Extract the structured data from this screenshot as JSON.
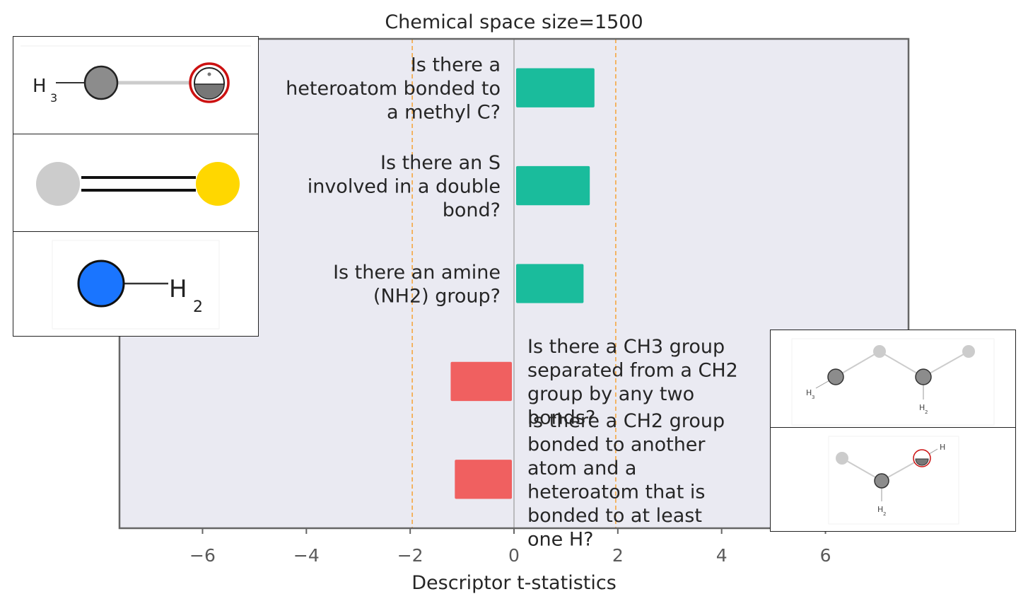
{
  "chart_data": {
    "type": "bar",
    "orientation": "horizontal",
    "title": "Chemical space size=1500",
    "xlabel": "Descriptor t-statistics",
    "ylabel": "",
    "xlim": [
      -7.6,
      7.6
    ],
    "xticks": [
      -6,
      -4,
      -2,
      0,
      2,
      4,
      6
    ],
    "xtick_labels": [
      "−6",
      "−4",
      "−2",
      "0",
      "2",
      "4",
      "6"
    ],
    "significance_lines": [
      -1.96,
      1.96
    ],
    "grid": false,
    "categories": [
      "Is there a heteroatom bonded to a methyl C?",
      "Is there an S involved in a double bond?",
      "Is there an amine (NH2) group?",
      "Is there a CH3 group separated from a CH2 group by any two bonds?",
      "Is there a CH2 group bonded to another atom and a heteroatom that is bonded to at least one H?"
    ],
    "label_lines": [
      [
        "Is there a",
        "heteroatom bonded to",
        "a methyl C?"
      ],
      [
        "Is there an S",
        "involved in a double",
        "bond?"
      ],
      [
        "Is there an amine",
        "(NH2) group?"
      ],
      [
        "Is there a CH3 group",
        "separated from a CH2",
        "group by any two",
        "bonds?"
      ],
      [
        "Is there a CH2 group",
        "bonded to another",
        "atom and a",
        "heteroatom that is",
        "bonded to at least",
        "one H?"
      ]
    ],
    "values": [
      1.55,
      1.46,
      1.34,
      -1.22,
      -1.14
    ],
    "colors": {
      "positive": "#1abc9c",
      "negative": "#f06060",
      "plot_background": "#eaeaf2",
      "significance_line": "#f5a742",
      "zero_line": "#9a9a9a",
      "frame": "#666666"
    }
  },
  "molecule_icons": [
    {
      "name": "methyl-heteroatom",
      "labels": [
        "H",
        "3"
      ]
    },
    {
      "name": "sulfur-double-bond",
      "labels": []
    },
    {
      "name": "amine-nh2",
      "labels": [
        "H",
        "2"
      ]
    },
    {
      "name": "ch3-ch2-separation",
      "labels": [
        "H",
        "3",
        "H",
        "2"
      ]
    },
    {
      "name": "ch2-heteroatom-h",
      "labels": [
        "H",
        "H",
        "2"
      ]
    }
  ]
}
